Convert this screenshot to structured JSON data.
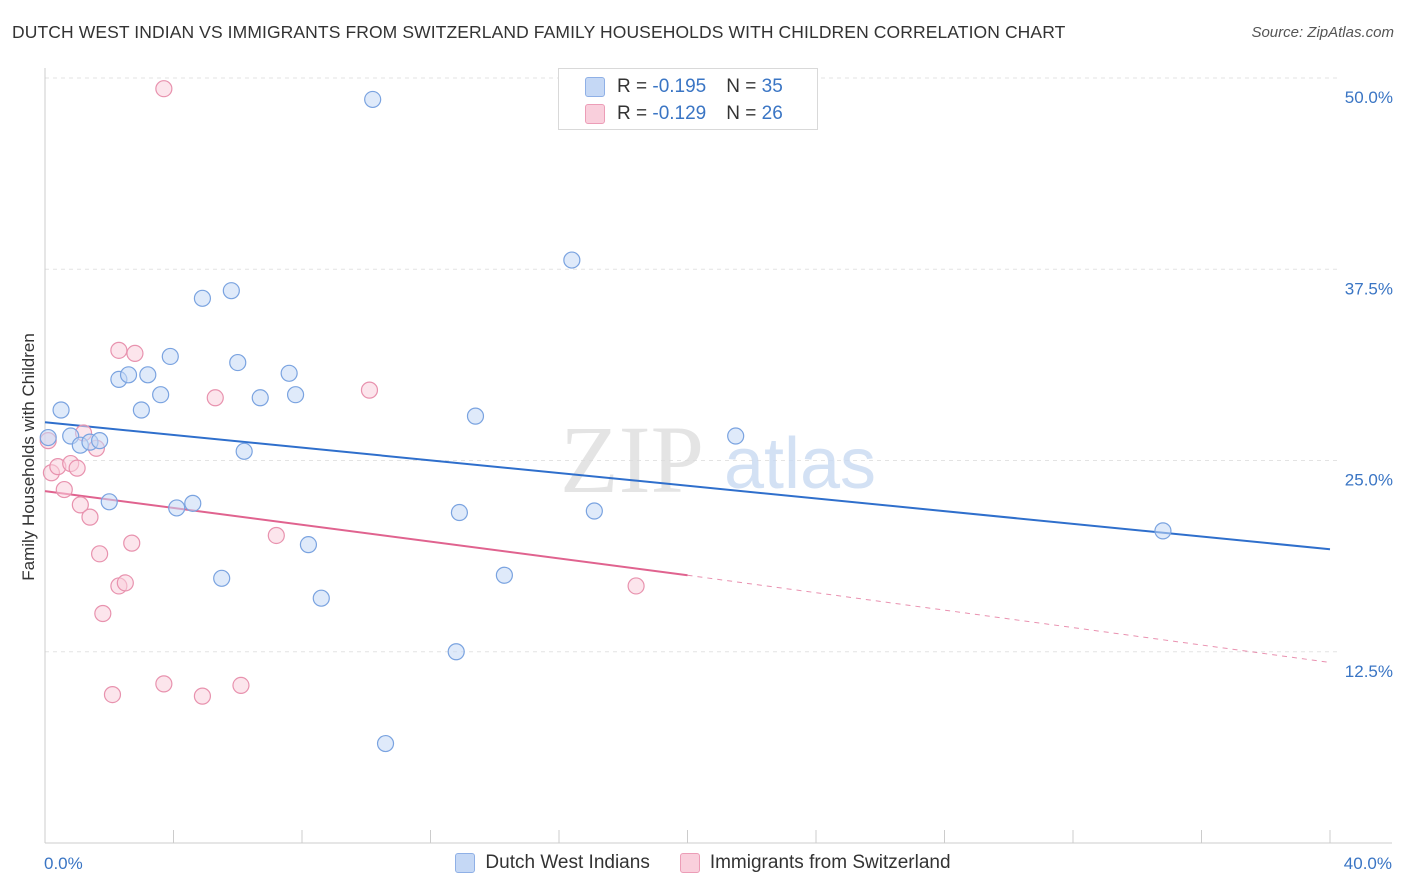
{
  "title": "DUTCH WEST INDIAN VS IMMIGRANTS FROM SWITZERLAND FAMILY HOUSEHOLDS WITH CHILDREN CORRELATION CHART",
  "source": "Source: ZipAtlas.com",
  "watermark": {
    "zip": "ZIP",
    "atlas": "atlas"
  },
  "stats_legend": {
    "rows": [
      {
        "r_label": "R = ",
        "r_value": "-0.195",
        "n_label": "N = ",
        "n_value": "35"
      },
      {
        "r_label": "R = ",
        "r_value": "-0.129",
        "n_label": "N = ",
        "n_value": "26"
      }
    ]
  },
  "bottom_legend": {
    "series_a": "Dutch West Indians",
    "series_b": "Immigrants from Switzerland"
  },
  "colors": {
    "blue_fill": "#c5d8f5",
    "blue_stroke": "#7aa3e0",
    "blue_line": "#2f6fcc",
    "pink_fill": "#f9cfdc",
    "pink_stroke": "#e892ae",
    "pink_line": "#e0638f",
    "tick_label": "#3a75c4",
    "grid": "#e3e3e3"
  },
  "chart_data": {
    "type": "scatter",
    "title": "DUTCH WEST INDIAN VS IMMIGRANTS FROM SWITZERLAND FAMILY HOUSEHOLDS WITH CHILDREN CORRELATION CHART",
    "xlabel": "",
    "ylabel": "Family Households with Children",
    "xlim": [
      0,
      40
    ],
    "ylim": [
      0,
      50
    ],
    "x_tick_labels": [
      "0.0%",
      "40.0%"
    ],
    "y_ticks": [
      12.5,
      25.0,
      37.5,
      50.0
    ],
    "y_tick_labels": [
      "12.5%",
      "25.0%",
      "37.5%",
      "50.0%"
    ],
    "series": [
      {
        "name": "Dutch West Indians",
        "color": "blue",
        "trend": {
          "x": [
            0,
            40
          ],
          "y": [
            27.5,
            19.2
          ]
        },
        "points": [
          [
            0.1,
            26.5
          ],
          [
            0.5,
            28.3
          ],
          [
            0.8,
            26.6
          ],
          [
            1.1,
            26.0
          ],
          [
            1.4,
            26.2
          ],
          [
            1.7,
            26.3
          ],
          [
            2.0,
            22.3
          ],
          [
            2.3,
            30.3
          ],
          [
            2.6,
            30.6
          ],
          [
            3.0,
            28.3
          ],
          [
            3.2,
            30.6
          ],
          [
            3.6,
            29.3
          ],
          [
            3.9,
            31.8
          ],
          [
            4.1,
            21.9
          ],
          [
            4.6,
            22.2
          ],
          [
            4.9,
            35.6
          ],
          [
            5.5,
            17.3
          ],
          [
            5.8,
            36.1
          ],
          [
            6.0,
            31.4
          ],
          [
            6.2,
            25.6
          ],
          [
            6.7,
            29.1
          ],
          [
            7.6,
            30.7
          ],
          [
            7.8,
            29.3
          ],
          [
            8.2,
            19.5
          ],
          [
            8.6,
            16.0
          ],
          [
            10.2,
            48.6
          ],
          [
            10.6,
            6.5
          ],
          [
            12.8,
            12.5
          ],
          [
            12.9,
            21.6
          ],
          [
            13.4,
            27.9
          ],
          [
            14.3,
            17.5
          ],
          [
            16.4,
            38.1
          ],
          [
            17.1,
            21.7
          ],
          [
            21.5,
            26.6
          ],
          [
            34.8,
            20.4
          ]
        ]
      },
      {
        "name": "Immigrants from Switzerland",
        "color": "pink",
        "trend": {
          "x": [
            0,
            20
          ],
          "y": [
            23.0,
            17.5
          ]
        },
        "trend_extension": {
          "x": [
            20,
            40
          ],
          "y": [
            17.5,
            11.8
          ]
        },
        "points": [
          [
            0.1,
            26.3
          ],
          [
            0.2,
            24.2
          ],
          [
            0.4,
            24.6
          ],
          [
            0.6,
            23.1
          ],
          [
            0.8,
            24.8
          ],
          [
            1.0,
            24.5
          ],
          [
            1.1,
            22.1
          ],
          [
            1.2,
            26.8
          ],
          [
            1.4,
            21.3
          ],
          [
            1.6,
            25.8
          ],
          [
            1.7,
            18.9
          ],
          [
            1.8,
            15.0
          ],
          [
            2.1,
            9.7
          ],
          [
            2.3,
            16.8
          ],
          [
            2.3,
            32.2
          ],
          [
            2.5,
            17.0
          ],
          [
            2.7,
            19.6
          ],
          [
            2.8,
            32.0
          ],
          [
            3.7,
            49.3
          ],
          [
            3.7,
            10.4
          ],
          [
            4.9,
            9.6
          ],
          [
            5.3,
            29.1
          ],
          [
            6.1,
            10.3
          ],
          [
            7.2,
            20.1
          ],
          [
            10.1,
            29.6
          ],
          [
            18.4,
            16.8
          ]
        ]
      }
    ]
  }
}
